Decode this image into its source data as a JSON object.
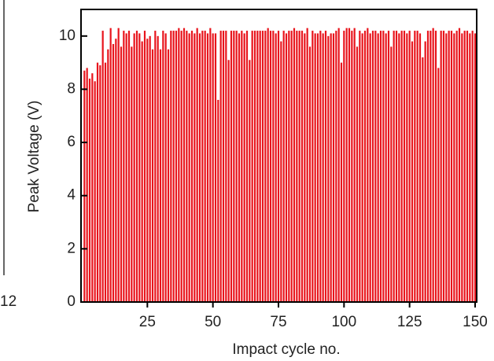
{
  "chart_data": {
    "type": "bar",
    "clipped_label": "12",
    "xlabel": "Impact cycle no.",
    "ylabel": "Peak Voltage (V)",
    "color": "#e8141c",
    "xlim": [
      0,
      150
    ],
    "xticks": [
      25,
      50,
      75,
      100,
      125,
      150
    ],
    "ylim": [
      0,
      11
    ],
    "yticks": [
      0,
      2,
      4,
      6,
      8,
      10
    ],
    "x": [
      1,
      2,
      3,
      4,
      5,
      6,
      7,
      8,
      9,
      10,
      11,
      12,
      13,
      14,
      15,
      16,
      17,
      18,
      19,
      20,
      21,
      22,
      23,
      24,
      25,
      26,
      27,
      28,
      29,
      30,
      31,
      32,
      33,
      34,
      35,
      36,
      37,
      38,
      39,
      40,
      41,
      42,
      43,
      44,
      45,
      46,
      47,
      48,
      49,
      50,
      51,
      52,
      53,
      54,
      55,
      56,
      57,
      58,
      59,
      60,
      61,
      62,
      63,
      64,
      65,
      66,
      67,
      68,
      69,
      70,
      71,
      72,
      73,
      74,
      75,
      76,
      77,
      78,
      79,
      80,
      81,
      82,
      83,
      84,
      85,
      86,
      87,
      88,
      89,
      90,
      91,
      92,
      93,
      94,
      95,
      96,
      97,
      98,
      99,
      100,
      101,
      102,
      103,
      104,
      105,
      106,
      107,
      108,
      109,
      110,
      111,
      112,
      113,
      114,
      115,
      116,
      117,
      118,
      119,
      120,
      121,
      122,
      123,
      124,
      125,
      126,
      127,
      128,
      129,
      130,
      131,
      132,
      133,
      134,
      135,
      136,
      137,
      138,
      139,
      140,
      141,
      142,
      143,
      144,
      145,
      146,
      147,
      148,
      149,
      150
    ],
    "values": [
      8.7,
      8.8,
      8.4,
      8.6,
      8.3,
      9.0,
      8.9,
      10.2,
      9.0,
      9.5,
      10.3,
      9.7,
      9.9,
      10.3,
      9.6,
      10.2,
      10.1,
      10.2,
      9.6,
      10.1,
      10.2,
      10.1,
      9.8,
      10.2,
      9.9,
      10.0,
      9.5,
      10.2,
      10.0,
      9.5,
      10.2,
      10.1,
      9.5,
      10.2,
      10.2,
      10.2,
      10.3,
      10.2,
      10.3,
      10.2,
      10.1,
      10.2,
      10.1,
      10.3,
      10.1,
      10.2,
      10.2,
      10.1,
      10.3,
      10.1,
      10.1,
      7.6,
      10.2,
      10.2,
      10.2,
      9.1,
      10.2,
      10.2,
      10.2,
      10.1,
      10.2,
      10.1,
      10.2,
      9.1,
      10.2,
      10.2,
      10.2,
      10.2,
      10.2,
      10.2,
      10.3,
      10.2,
      10.2,
      10.1,
      10.2,
      9.8,
      10.2,
      10.1,
      10.2,
      10.2,
      10.3,
      10.2,
      10.2,
      10.2,
      10.1,
      10.3,
      9.6,
      10.2,
      10.1,
      10.1,
      10.2,
      10.1,
      10.2,
      10.0,
      10.1,
      10.1,
      10.2,
      10.3,
      9.0,
      10.2,
      10.3,
      10.3,
      10.2,
      10.3,
      9.6,
      10.2,
      10.1,
      10.2,
      10.3,
      10.1,
      10.2,
      10.2,
      10.1,
      10.2,
      10.2,
      10.1,
      10.2,
      9.6,
      10.2,
      10.2,
      10.1,
      10.2,
      10.2,
      10.1,
      10.2,
      9.8,
      10.2,
      10.2,
      10.1,
      9.2,
      9.8,
      10.2,
      10.2,
      10.3,
      10.2,
      8.8,
      10.2,
      10.2,
      10.1,
      10.2,
      10.2,
      10.1,
      10.2,
      10.3,
      10.1,
      10.2,
      10.2,
      10.1,
      10.2,
      10.1
    ]
  }
}
